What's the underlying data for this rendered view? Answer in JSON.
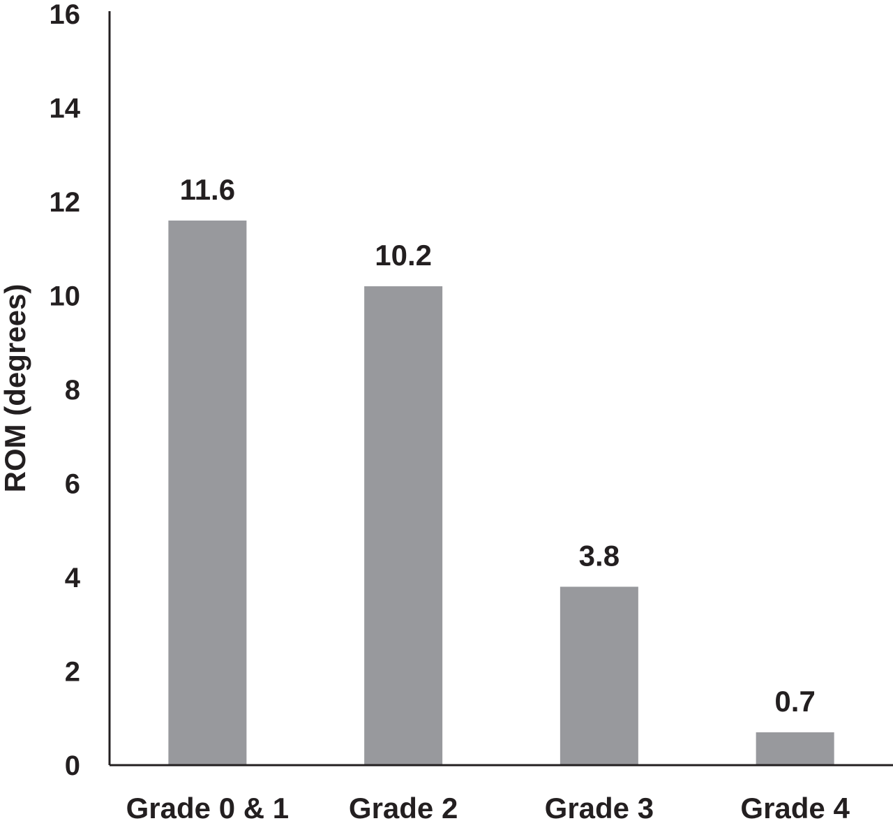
{
  "chart_data": {
    "type": "bar",
    "title": "",
    "xlabel": "",
    "ylabel": "ROM (degrees)",
    "categories": [
      "Grade 0 & 1",
      "Grade 2",
      "Grade 3",
      "Grade 4"
    ],
    "values": [
      11.6,
      10.2,
      3.8,
      0.7
    ],
    "data_labels": [
      "11.6",
      "10.2",
      "3.8",
      "0.7"
    ],
    "ylim": [
      0,
      16
    ],
    "yticks": [
      0,
      2,
      4,
      6,
      8,
      10,
      12,
      14,
      16
    ],
    "grid": false,
    "legend": "none",
    "colors": {
      "bar": "#98999d",
      "axis": "#231f20",
      "text": "#231f20"
    }
  }
}
